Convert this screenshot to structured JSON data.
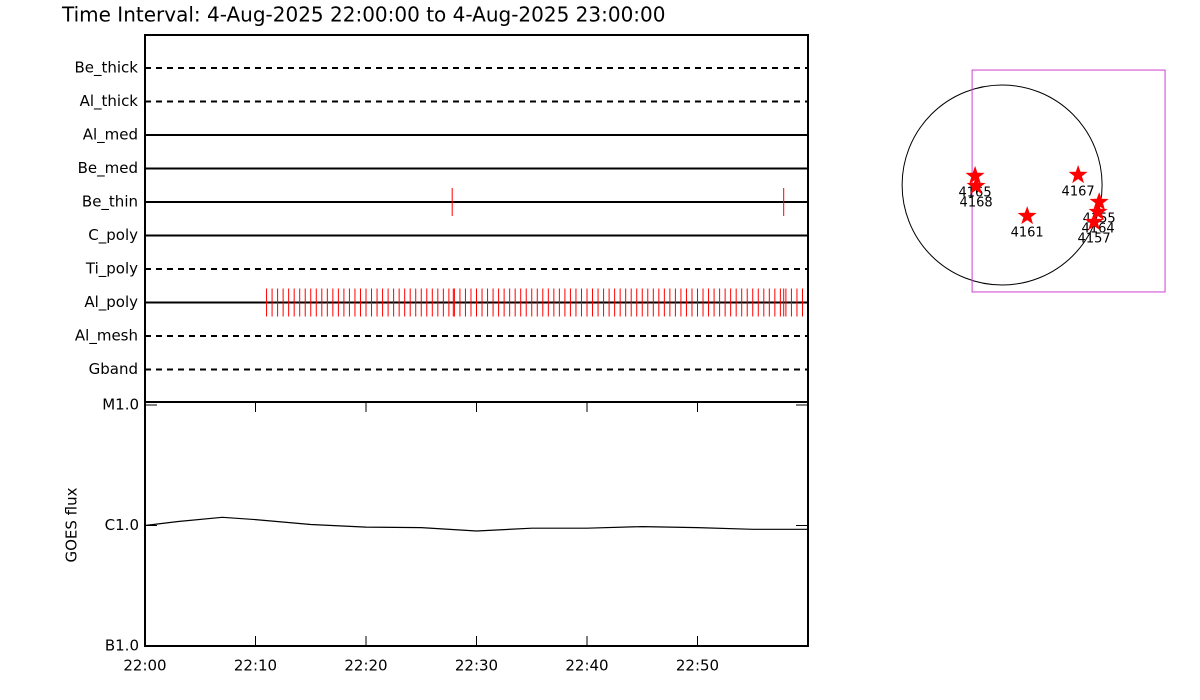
{
  "chart_data": [
    {
      "type": "timeline",
      "title": "Time Interval:  4-Aug-2025 22:00:00 to  4-Aug-2025 23:00:00",
      "categories": [
        "Be_thick",
        "Al_thick",
        "Al_med",
        "Be_med",
        "Be_thin",
        "C_poly",
        "Ti_poly",
        "Al_poly",
        "Al_mesh",
        "Gband"
      ],
      "line_styles": [
        "dashed",
        "dashed",
        "solid",
        "solid",
        "solid",
        "solid",
        "dashed",
        "solid",
        "dashed",
        "dashed"
      ],
      "color": "#ff0000",
      "xlim": [
        0,
        60
      ],
      "events": [
        [],
        [],
        [],
        [],
        [
          27.8,
          57.8
        ],
        [],
        [],
        [
          11,
          11.5,
          12,
          12.5,
          13,
          13.5,
          14,
          14.5,
          15,
          15.5,
          16,
          16.5,
          17,
          17.5,
          18,
          18.5,
          19,
          19.5,
          20,
          20.5,
          21,
          21.5,
          22,
          22.5,
          23,
          23.5,
          24,
          24.5,
          25,
          25.5,
          26,
          26.5,
          27,
          27.5,
          27.9,
          28,
          28.5,
          29,
          29.5,
          30,
          30.5,
          31,
          31.5,
          32,
          32.5,
          33,
          33.5,
          34,
          34.5,
          35,
          35.5,
          36,
          36.5,
          37,
          37.5,
          38,
          38.5,
          39,
          39.5,
          40,
          40.5,
          41,
          41.5,
          42,
          42.5,
          43,
          43.5,
          44,
          44.5,
          45,
          45.5,
          46,
          46.5,
          47,
          47.5,
          48,
          48.5,
          49,
          49.5,
          50,
          50.5,
          51,
          51.5,
          52,
          52.5,
          53,
          53.5,
          54,
          54.5,
          55,
          55.5,
          56,
          56.5,
          57,
          57.5,
          57.8,
          58,
          58.5,
          59,
          59.5
        ],
        [],
        []
      ]
    },
    {
      "type": "line",
      "ylabel": "GOES flux",
      "x": [
        0,
        3,
        7,
        10,
        15,
        20,
        25,
        30,
        35,
        40,
        45,
        50,
        55,
        60
      ],
      "values": [
        1e-06,
        1.08e-06,
        1.17e-06,
        1.12e-06,
        1.02e-06,
        9.7e-07,
        9.6e-07,
        9e-07,
        9.5e-07,
        9.5e-07,
        9.8e-07,
        9.6e-07,
        9.3e-07,
        9.3e-07
      ],
      "color": "#000000",
      "xlim": [
        0,
        60
      ],
      "xticks": [
        {
          "value": 0,
          "label": "22:00"
        },
        {
          "value": 10,
          "label": "22:10"
        },
        {
          "value": 20,
          "label": "22:20"
        },
        {
          "value": 30,
          "label": "22:30"
        },
        {
          "value": 40,
          "label": "22:40"
        },
        {
          "value": 50,
          "label": "22:50"
        }
      ],
      "log_scale": true,
      "ylim": [
        1e-07,
        1e-05
      ],
      "yticks": [
        {
          "value": 1e-07,
          "label": "B1.0"
        },
        {
          "value": 1e-06,
          "label": "C1.0"
        },
        {
          "value": 1e-05,
          "label": "M1.0"
        }
      ]
    },
    {
      "type": "map",
      "xlim": [
        -1350,
        1880
      ],
      "ylim": [
        -1520,
        1710
      ],
      "solar_radius": 950,
      "fov": {
        "x": [
          -285,
          1548
        ],
        "y": [
          -1016,
          1092
        ]
      },
      "fov_color": "#d040d0",
      "color": "#ff0000",
      "names": [
        "4165",
        "4168",
        "4167",
        "4161",
        "4155",
        "4164",
        "4157"
      ],
      "x": [
        -257,
        -247,
        722,
        238,
        922,
        912,
        874
      ],
      "y": [
        86,
        -10,
        95,
        -295,
        -162,
        -257,
        -352
      ]
    }
  ]
}
